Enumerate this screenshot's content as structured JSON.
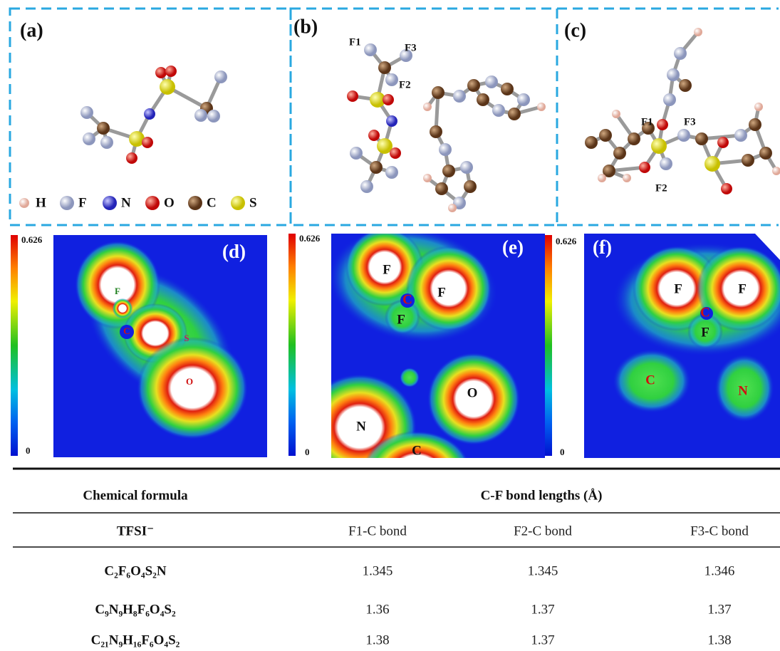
{
  "panels": {
    "a": "(a)",
    "b": "(b)",
    "c": "(c)",
    "d": "(d)",
    "e": "(e)",
    "f": "(f)"
  },
  "legend": [
    "H",
    "F",
    "N",
    "O",
    "C",
    "S"
  ],
  "structure_labels": {
    "b": [
      "F1",
      "F3",
      "F2"
    ],
    "c": [
      "F1",
      "F3",
      "F2"
    ]
  },
  "maps": [
    {
      "scale_max": "0.626",
      "scale_min": "0",
      "atoms": [
        "F",
        "C",
        "S",
        "O"
      ]
    },
    {
      "scale_max": "0.626",
      "scale_min": "0",
      "atoms": [
        "F",
        "C",
        "F",
        "F",
        "O",
        "N",
        "C"
      ]
    },
    {
      "scale_max": "0.626",
      "scale_min": "0",
      "atoms": [
        "F",
        "F",
        "C",
        "F",
        "C",
        "N"
      ]
    }
  ],
  "table": {
    "header": [
      "Chemical formula",
      "C-F bond lengths (Å)"
    ],
    "subheader": [
      "TFSI⁻",
      "F1-C bond",
      "F2-C bond",
      "F3-C bond"
    ],
    "rows": [
      [
        "C₂F₆O₄S₂N",
        "1.345",
        "1.345",
        "1.346"
      ],
      [
        "C₉N₉H₈F₆O₄S₂",
        "1.36",
        "1.37",
        "1.37"
      ],
      [
        "C₂₁N₉H₁₆F₆O₄S₂",
        "1.38",
        "1.37",
        "1.38"
      ]
    ]
  }
}
